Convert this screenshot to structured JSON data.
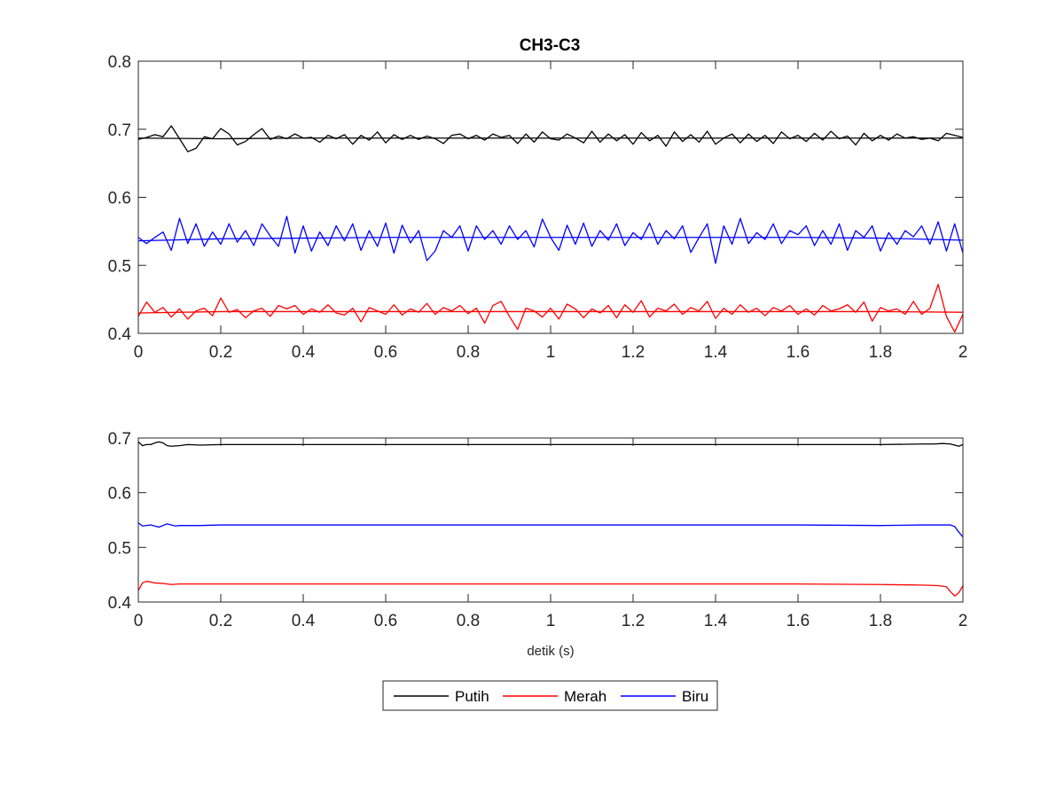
{
  "chart_data": [
    {
      "type": "line",
      "title": "CH3-C3",
      "xlabel": "",
      "ylabel": "",
      "xlim": [
        0,
        2
      ],
      "ylim": [
        0.4,
        0.8
      ],
      "xticks": [
        0,
        0.2,
        0.4,
        0.6,
        0.8,
        1,
        1.2,
        1.4,
        1.6,
        1.8,
        2
      ],
      "xtick_labels": [
        "0",
        "0.2",
        "0.4",
        "0.6",
        "0.8",
        "1",
        "1.2",
        "1.4",
        "1.6",
        "1.8",
        "2"
      ],
      "yticks": [
        0.4,
        0.5,
        0.6,
        0.7,
        0.8
      ],
      "ytick_labels": [
        "0.4",
        "0.5",
        "0.6",
        "0.7",
        "0.8"
      ],
      "grid": false,
      "series": [
        {
          "name": "Putih",
          "color": "#000000",
          "x": [
            0,
            0.02,
            0.04,
            0.06,
            0.08,
            0.1,
            0.12,
            0.14,
            0.16,
            0.18,
            0.2,
            0.22,
            0.24,
            0.26,
            0.28,
            0.3,
            0.32,
            0.34,
            0.36,
            0.38,
            0.4,
            0.42,
            0.44,
            0.46,
            0.48,
            0.5,
            0.52,
            0.54,
            0.56,
            0.58,
            0.6,
            0.62,
            0.64,
            0.66,
            0.68,
            0.7,
            0.72,
            0.74,
            0.76,
            0.78,
            0.8,
            0.82,
            0.84,
            0.86,
            0.88,
            0.9,
            0.92,
            0.94,
            0.96,
            0.98,
            1,
            1.02,
            1.04,
            1.06,
            1.08,
            1.1,
            1.12,
            1.14,
            1.16,
            1.18,
            1.2,
            1.22,
            1.24,
            1.26,
            1.28,
            1.3,
            1.32,
            1.34,
            1.36,
            1.38,
            1.4,
            1.42,
            1.44,
            1.46,
            1.48,
            1.5,
            1.52,
            1.54,
            1.56,
            1.58,
            1.6,
            1.62,
            1.64,
            1.66,
            1.68,
            1.7,
            1.72,
            1.74,
            1.76,
            1.78,
            1.8,
            1.82,
            1.84,
            1.86,
            1.88,
            1.9,
            1.92,
            1.94,
            1.96,
            1.98,
            2
          ],
          "values": [
            0.685,
            0.688,
            0.692,
            0.689,
            0.705,
            0.686,
            0.667,
            0.672,
            0.689,
            0.686,
            0.701,
            0.693,
            0.677,
            0.682,
            0.692,
            0.701,
            0.685,
            0.69,
            0.686,
            0.693,
            0.687,
            0.688,
            0.681,
            0.691,
            0.686,
            0.692,
            0.678,
            0.691,
            0.684,
            0.696,
            0.68,
            0.692,
            0.685,
            0.691,
            0.685,
            0.69,
            0.686,
            0.679,
            0.691,
            0.693,
            0.686,
            0.691,
            0.684,
            0.693,
            0.688,
            0.691,
            0.679,
            0.693,
            0.681,
            0.696,
            0.686,
            0.684,
            0.693,
            0.687,
            0.68,
            0.697,
            0.681,
            0.693,
            0.683,
            0.692,
            0.678,
            0.695,
            0.683,
            0.691,
            0.675,
            0.696,
            0.682,
            0.692,
            0.681,
            0.697,
            0.678,
            0.687,
            0.693,
            0.68,
            0.693,
            0.682,
            0.691,
            0.679,
            0.696,
            0.686,
            0.691,
            0.682,
            0.694,
            0.684,
            0.697,
            0.686,
            0.69,
            0.677,
            0.694,
            0.683,
            0.691,
            0.684,
            0.693,
            0.687,
            0.689,
            0.685,
            0.687,
            0.683,
            0.694,
            0.691,
            0.688
          ]
        },
        {
          "name": "Merah",
          "color": "#ff0000",
          "x": [
            0,
            0.02,
            0.04,
            0.06,
            0.08,
            0.1,
            0.12,
            0.14,
            0.16,
            0.18,
            0.2,
            0.22,
            0.24,
            0.26,
            0.28,
            0.3,
            0.32,
            0.34,
            0.36,
            0.38,
            0.4,
            0.42,
            0.44,
            0.46,
            0.48,
            0.5,
            0.52,
            0.54,
            0.56,
            0.58,
            0.6,
            0.62,
            0.64,
            0.66,
            0.68,
            0.7,
            0.72,
            0.74,
            0.76,
            0.78,
            0.8,
            0.82,
            0.84,
            0.86,
            0.88,
            0.9,
            0.92,
            0.94,
            0.96,
            0.98,
            1,
            1.02,
            1.04,
            1.06,
            1.08,
            1.1,
            1.12,
            1.14,
            1.16,
            1.18,
            1.2,
            1.22,
            1.24,
            1.26,
            1.28,
            1.3,
            1.32,
            1.34,
            1.36,
            1.38,
            1.4,
            1.42,
            1.44,
            1.46,
            1.48,
            1.5,
            1.52,
            1.54,
            1.56,
            1.58,
            1.6,
            1.62,
            1.64,
            1.66,
            1.68,
            1.7,
            1.72,
            1.74,
            1.76,
            1.78,
            1.8,
            1.82,
            1.84,
            1.86,
            1.88,
            1.9,
            1.92,
            1.94,
            1.96,
            1.98,
            2
          ],
          "values": [
            0.425,
            0.446,
            0.431,
            0.438,
            0.424,
            0.436,
            0.421,
            0.433,
            0.437,
            0.426,
            0.452,
            0.431,
            0.435,
            0.423,
            0.433,
            0.437,
            0.425,
            0.441,
            0.436,
            0.441,
            0.428,
            0.436,
            0.431,
            0.442,
            0.43,
            0.427,
            0.437,
            0.417,
            0.438,
            0.433,
            0.428,
            0.442,
            0.427,
            0.436,
            0.431,
            0.444,
            0.428,
            0.438,
            0.433,
            0.441,
            0.429,
            0.437,
            0.415,
            0.441,
            0.447,
            0.425,
            0.406,
            0.437,
            0.433,
            0.424,
            0.437,
            0.421,
            0.443,
            0.436,
            0.423,
            0.436,
            0.43,
            0.441,
            0.423,
            0.442,
            0.431,
            0.448,
            0.424,
            0.437,
            0.433,
            0.443,
            0.428,
            0.438,
            0.433,
            0.447,
            0.422,
            0.437,
            0.428,
            0.442,
            0.431,
            0.437,
            0.426,
            0.438,
            0.433,
            0.441,
            0.428,
            0.436,
            0.427,
            0.441,
            0.433,
            0.436,
            0.442,
            0.431,
            0.446,
            0.418,
            0.438,
            0.433,
            0.436,
            0.428,
            0.447,
            0.428,
            0.437,
            0.472,
            0.425,
            0.402,
            0.428
          ]
        },
        {
          "name": "Biru",
          "color": "#0000ff",
          "x": [
            0,
            0.02,
            0.04,
            0.06,
            0.08,
            0.1,
            0.12,
            0.14,
            0.16,
            0.18,
            0.2,
            0.22,
            0.24,
            0.26,
            0.28,
            0.3,
            0.32,
            0.34,
            0.36,
            0.38,
            0.4,
            0.42,
            0.44,
            0.46,
            0.48,
            0.5,
            0.52,
            0.54,
            0.56,
            0.58,
            0.6,
            0.62,
            0.64,
            0.66,
            0.68,
            0.7,
            0.72,
            0.74,
            0.76,
            0.78,
            0.8,
            0.82,
            0.84,
            0.86,
            0.88,
            0.9,
            0.92,
            0.94,
            0.96,
            0.98,
            1,
            1.02,
            1.04,
            1.06,
            1.08,
            1.1,
            1.12,
            1.14,
            1.16,
            1.18,
            1.2,
            1.22,
            1.24,
            1.26,
            1.28,
            1.3,
            1.32,
            1.34,
            1.36,
            1.38,
            1.4,
            1.42,
            1.44,
            1.46,
            1.48,
            1.5,
            1.52,
            1.54,
            1.56,
            1.58,
            1.6,
            1.62,
            1.64,
            1.66,
            1.68,
            1.7,
            1.72,
            1.74,
            1.76,
            1.78,
            1.8,
            1.82,
            1.84,
            1.86,
            1.88,
            1.9,
            1.92,
            1.94,
            1.96,
            1.98,
            2
          ],
          "values": [
            0.541,
            0.532,
            0.541,
            0.549,
            0.522,
            0.569,
            0.532,
            0.561,
            0.528,
            0.549,
            0.531,
            0.561,
            0.534,
            0.551,
            0.529,
            0.561,
            0.543,
            0.528,
            0.572,
            0.518,
            0.558,
            0.521,
            0.549,
            0.529,
            0.558,
            0.536,
            0.561,
            0.522,
            0.551,
            0.528,
            0.562,
            0.518,
            0.559,
            0.533,
            0.551,
            0.507,
            0.521,
            0.551,
            0.541,
            0.558,
            0.521,
            0.558,
            0.538,
            0.551,
            0.531,
            0.558,
            0.538,
            0.551,
            0.527,
            0.568,
            0.541,
            0.522,
            0.559,
            0.531,
            0.562,
            0.528,
            0.551,
            0.537,
            0.561,
            0.529,
            0.548,
            0.538,
            0.562,
            0.531,
            0.551,
            0.539,
            0.558,
            0.519,
            0.541,
            0.561,
            0.503,
            0.558,
            0.531,
            0.569,
            0.532,
            0.548,
            0.538,
            0.561,
            0.532,
            0.551,
            0.545,
            0.558,
            0.529,
            0.551,
            0.531,
            0.561,
            0.522,
            0.551,
            0.541,
            0.558,
            0.521,
            0.548,
            0.531,
            0.551,
            0.542,
            0.558,
            0.531,
            0.564,
            0.521,
            0.561,
            0.518
          ]
        },
        {
          "name": "",
          "color": "#000000",
          "x": [
            0,
            0.2,
            0.4,
            0.6,
            0.8,
            1,
            1.2,
            1.4,
            1.6,
            1.8,
            2
          ],
          "values": [
            0.687,
            0.686,
            0.687,
            0.687,
            0.687,
            0.687,
            0.687,
            0.687,
            0.687,
            0.687,
            0.687
          ]
        },
        {
          "name": "",
          "color": "#ff0000",
          "x": [
            0,
            0.2,
            0.4,
            0.6,
            0.8,
            1,
            1.2,
            1.4,
            1.6,
            1.8,
            2
          ],
          "values": [
            0.43,
            0.432,
            0.432,
            0.432,
            0.432,
            0.432,
            0.432,
            0.432,
            0.432,
            0.432,
            0.431
          ]
        },
        {
          "name": "",
          "color": "#0000ff",
          "x": [
            0,
            0.2,
            0.4,
            0.6,
            0.8,
            1,
            1.2,
            1.4,
            1.6,
            1.8,
            2
          ],
          "values": [
            0.536,
            0.539,
            0.54,
            0.541,
            0.541,
            0.541,
            0.541,
            0.541,
            0.541,
            0.54,
            0.537
          ]
        }
      ]
    },
    {
      "type": "line",
      "title": "",
      "xlabel": "detik (s)",
      "ylabel": "",
      "xlim": [
        0,
        2
      ],
      "ylim": [
        0.4,
        0.7
      ],
      "xticks": [
        0,
        0.2,
        0.4,
        0.6,
        0.8,
        1,
        1.2,
        1.4,
        1.6,
        1.8,
        2
      ],
      "xtick_labels": [
        "0",
        "0.2",
        "0.4",
        "0.6",
        "0.8",
        "1",
        "1.2",
        "1.4",
        "1.6",
        "1.8",
        "2"
      ],
      "yticks": [
        0.4,
        0.5,
        0.6,
        0.7
      ],
      "ytick_labels": [
        "0.4",
        "0.5",
        "0.6",
        "0.7"
      ],
      "grid": false,
      "series": [
        {
          "name": "Putih",
          "color": "#000000",
          "x": [
            0,
            0.01,
            0.02,
            0.03,
            0.04,
            0.05,
            0.06,
            0.07,
            0.08,
            0.1,
            0.12,
            0.15,
            0.2,
            0.4,
            0.6,
            0.8,
            1,
            1.2,
            1.4,
            1.6,
            1.8,
            1.9,
            1.93,
            1.95,
            1.97,
            1.99,
            2
          ],
          "values": [
            0.693,
            0.686,
            0.688,
            0.688,
            0.691,
            0.693,
            0.691,
            0.686,
            0.685,
            0.686,
            0.688,
            0.687,
            0.688,
            0.688,
            0.688,
            0.688,
            0.688,
            0.688,
            0.688,
            0.688,
            0.688,
            0.689,
            0.689,
            0.69,
            0.689,
            0.685,
            0.688
          ]
        },
        {
          "name": "Merah",
          "color": "#ff0000",
          "x": [
            0,
            0.01,
            0.02,
            0.04,
            0.06,
            0.08,
            0.1,
            0.15,
            0.2,
            0.4,
            0.6,
            0.8,
            1,
            1.2,
            1.4,
            1.6,
            1.8,
            1.9,
            1.94,
            1.96,
            1.97,
            1.98,
            1.99,
            2
          ],
          "values": [
            0.421,
            0.435,
            0.438,
            0.435,
            0.434,
            0.432,
            0.433,
            0.433,
            0.433,
            0.433,
            0.433,
            0.433,
            0.433,
            0.433,
            0.433,
            0.433,
            0.432,
            0.431,
            0.43,
            0.428,
            0.419,
            0.411,
            0.417,
            0.43
          ]
        },
        {
          "name": "Biru",
          "color": "#0000ff",
          "x": [
            0,
            0.01,
            0.03,
            0.05,
            0.07,
            0.09,
            0.1,
            0.15,
            0.2,
            0.4,
            0.6,
            0.8,
            1,
            1.2,
            1.4,
            1.6,
            1.8,
            1.9,
            1.95,
            1.97,
            1.98,
            1.99,
            2
          ],
          "values": [
            0.545,
            0.539,
            0.541,
            0.537,
            0.543,
            0.539,
            0.54,
            0.54,
            0.541,
            0.541,
            0.541,
            0.541,
            0.541,
            0.541,
            0.541,
            0.541,
            0.54,
            0.541,
            0.541,
            0.541,
            0.538,
            0.528,
            0.519
          ]
        }
      ]
    }
  ],
  "legend": {
    "placement": "bottom-center",
    "entries": [
      {
        "label": "Putih",
        "color": "#000000"
      },
      {
        "label": "Merah",
        "color": "#ff0000"
      },
      {
        "label": "Biru",
        "color": "#0000ff"
      }
    ]
  }
}
